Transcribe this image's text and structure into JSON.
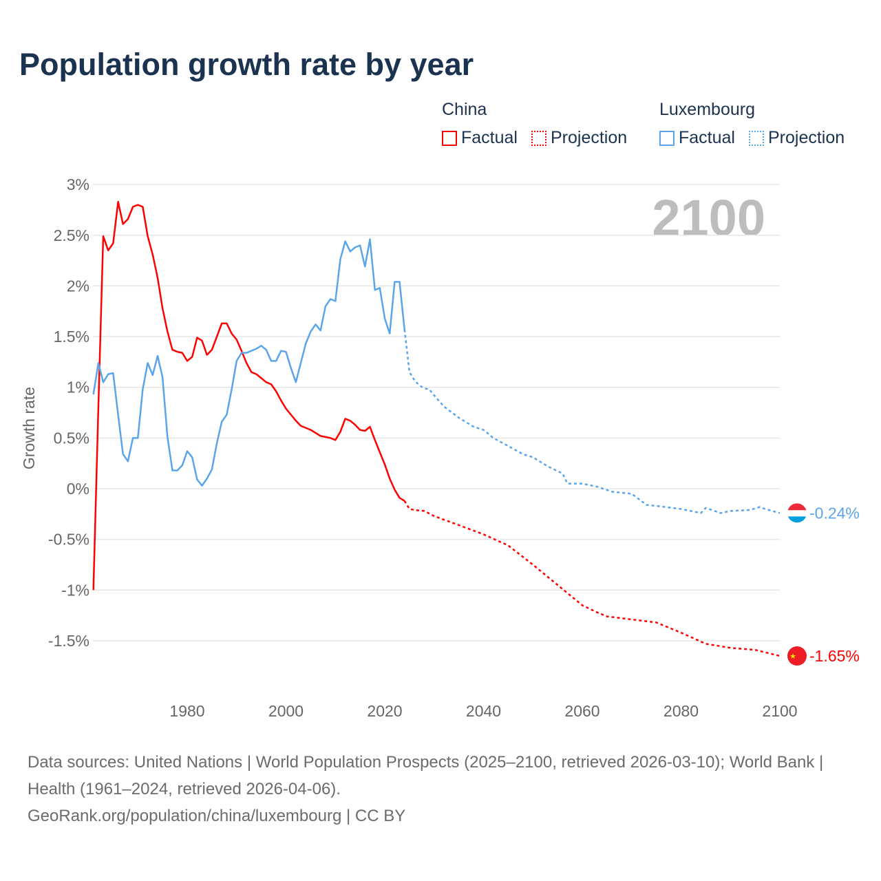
{
  "chart_data": {
    "type": "line",
    "title": "Population growth rate by year",
    "ylabel": "Growth rate",
    "xlabel": "",
    "ylim": [
      -1.8,
      3
    ],
    "xlim": [
      1961,
      2100
    ],
    "y_ticks": [
      3,
      2.5,
      2,
      1.5,
      1,
      0.5,
      0,
      -0.5,
      -1,
      -1.5
    ],
    "y_tick_labels": [
      "3%",
      "2.5%",
      "2%",
      "1.5%",
      "1%",
      "0.5%",
      "0%",
      "-0.5%",
      "-1%",
      "-1.5%"
    ],
    "x_ticks": [
      1980,
      2000,
      2020,
      2040,
      2060,
      2080,
      2100
    ],
    "x_tick_labels": [
      "1980",
      "2000",
      "2020",
      "2040",
      "2060",
      "2080",
      "2100"
    ],
    "grid": true,
    "year_watermark": "2100",
    "legend": {
      "placement": "top-right",
      "groups": [
        {
          "name": "China",
          "color": "#ff0000",
          "items": [
            "Factual",
            "Projection"
          ]
        },
        {
          "name": "Luxembourg",
          "color": "#5aa5ea",
          "items": [
            "Factual",
            "Projection"
          ]
        }
      ]
    },
    "series": [
      {
        "name": "China",
        "color": "#ff0000",
        "end_label": "-1.65%",
        "factual": {
          "x": [
            1961,
            1962,
            1963,
            1964,
            1965,
            1966,
            1967,
            1968,
            1969,
            1970,
            1971,
            1972,
            1973,
            1974,
            1975,
            1976,
            1977,
            1978,
            1979,
            1980,
            1981,
            1982,
            1983,
            1984,
            1985,
            1986,
            1987,
            1988,
            1989,
            1990,
            1991,
            1992,
            1993,
            1994,
            1995,
            1996,
            1997,
            1998,
            1999,
            2000,
            2001,
            2002,
            2003,
            2004,
            2005,
            2006,
            2007,
            2008,
            2009,
            2010,
            2011,
            2012,
            2013,
            2014,
            2015,
            2016,
            2017,
            2018,
            2019,
            2020,
            2021,
            2022,
            2023,
            2024
          ],
          "y": [
            -1.0,
            0.8,
            2.49,
            2.35,
            2.42,
            2.83,
            2.61,
            2.66,
            2.78,
            2.8,
            2.78,
            2.49,
            2.31,
            2.08,
            1.78,
            1.55,
            1.37,
            1.35,
            1.34,
            1.26,
            1.3,
            1.49,
            1.46,
            1.32,
            1.37,
            1.5,
            1.63,
            1.63,
            1.53,
            1.47,
            1.36,
            1.24,
            1.15,
            1.13,
            1.09,
            1.05,
            1.03,
            0.96,
            0.87,
            0.79,
            0.73,
            0.67,
            0.62,
            0.6,
            0.58,
            0.55,
            0.52,
            0.51,
            0.5,
            0.48,
            0.56,
            0.69,
            0.67,
            0.63,
            0.58,
            0.57,
            0.61,
            0.48,
            0.36,
            0.24,
            0.1,
            -0.01,
            -0.09,
            -0.12
          ]
        },
        "projection": {
          "x": [
            2024,
            2025,
            2026,
            2028,
            2030,
            2035,
            2040,
            2045,
            2050,
            2055,
            2060,
            2063,
            2065,
            2070,
            2075,
            2080,
            2085,
            2090,
            2095,
            2100
          ],
          "y": [
            -0.12,
            -0.2,
            -0.21,
            -0.22,
            -0.27,
            -0.36,
            -0.45,
            -0.56,
            -0.75,
            -0.95,
            -1.15,
            -1.22,
            -1.26,
            -1.29,
            -1.32,
            -1.42,
            -1.53,
            -1.57,
            -1.59,
            -1.65
          ]
        }
      },
      {
        "name": "Luxembourg",
        "color": "#5aa5ea",
        "end_label": "-0.24%",
        "factual": {
          "x": [
            1961,
            1962,
            1963,
            1964,
            1965,
            1966,
            1967,
            1968,
            1969,
            1970,
            1971,
            1972,
            1973,
            1974,
            1975,
            1976,
            1977,
            1978,
            1979,
            1980,
            1981,
            1982,
            1983,
            1984,
            1985,
            1986,
            1987,
            1988,
            1989,
            1990,
            1991,
            1992,
            1993,
            1994,
            1995,
            1996,
            1997,
            1998,
            1999,
            2000,
            2001,
            2002,
            2003,
            2004,
            2005,
            2006,
            2007,
            2008,
            2009,
            2010,
            2011,
            2012,
            2013,
            2014,
            2015,
            2016,
            2017,
            2018,
            2019,
            2020,
            2021,
            2022,
            2023,
            2024
          ],
          "y": [
            0.93,
            1.24,
            1.05,
            1.13,
            1.14,
            0.73,
            0.34,
            0.27,
            0.5,
            0.5,
            0.98,
            1.24,
            1.12,
            1.31,
            1.1,
            0.51,
            0.18,
            0.18,
            0.23,
            0.37,
            0.31,
            0.09,
            0.03,
            0.1,
            0.19,
            0.45,
            0.66,
            0.73,
            0.98,
            1.26,
            1.34,
            1.34,
            1.36,
            1.38,
            1.41,
            1.37,
            1.26,
            1.26,
            1.36,
            1.35,
            1.19,
            1.05,
            1.24,
            1.43,
            1.55,
            1.62,
            1.56,
            1.8,
            1.87,
            1.85,
            2.26,
            2.44,
            2.34,
            2.38,
            2.4,
            2.19,
            2.46,
            1.96,
            1.98,
            1.68,
            1.53,
            2.04,
            2.04,
            1.57
          ]
        },
        "projection": {
          "x": [
            2024,
            2025,
            2026,
            2027,
            2028,
            2029,
            2030,
            2032,
            2035,
            2038,
            2040,
            2042,
            2045,
            2048,
            2050,
            2053,
            2056,
            2057,
            2060,
            2063,
            2066,
            2070,
            2073,
            2075,
            2080,
            2084,
            2085,
            2088,
            2090,
            2094,
            2096,
            2097,
            2100
          ],
          "y": [
            1.57,
            1.15,
            1.07,
            1.02,
            0.99,
            0.98,
            0.92,
            0.81,
            0.7,
            0.61,
            0.58,
            0.5,
            0.42,
            0.34,
            0.31,
            0.22,
            0.15,
            0.05,
            0.05,
            0.02,
            -0.03,
            -0.05,
            -0.16,
            -0.17,
            -0.2,
            -0.24,
            -0.19,
            -0.24,
            -0.22,
            -0.21,
            -0.18,
            -0.2,
            -0.24
          ]
        }
      }
    ]
  },
  "footer": {
    "source_line": "Data sources: United Nations | World Population Prospects (2025–2100, retrieved 2026-03-10); World Bank | Health (1961–2024, retrieved 2026-04-06).",
    "credit_line": "GeoRank.org/population/china/luxembourg | CC BY"
  }
}
